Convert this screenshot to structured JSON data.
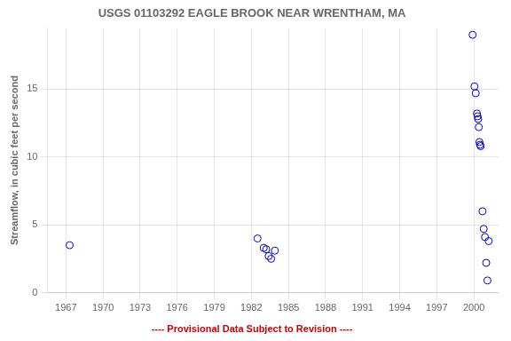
{
  "chart_data": {
    "type": "scatter",
    "title": "USGS 01103292 EAGLE BROOK NEAR WRENTHAM, MA",
    "ylabel": "Streamflow, in cubic feet per second",
    "x": [
      1967.3,
      1982.5,
      1983.0,
      1983.2,
      1983.4,
      1983.6,
      1983.9,
      1999.9,
      2000.05,
      2000.15,
      2000.25,
      2000.3,
      2000.35,
      2000.4,
      2000.45,
      2000.5,
      2000.55,
      2000.7,
      2000.8,
      2000.9,
      2001.0,
      2001.1,
      2001.2
    ],
    "values": [
      3.5,
      4.0,
      3.3,
      3.2,
      2.7,
      2.5,
      3.1,
      19.0,
      15.2,
      14.7,
      13.2,
      13.0,
      12.8,
      12.2,
      11.1,
      10.9,
      10.8,
      6.0,
      4.7,
      4.1,
      2.2,
      0.9,
      3.8
    ],
    "color": "#0000CC",
    "marker": "open_circle",
    "xlim": [
      1965.5,
      2002.0
    ],
    "ylim": [
      0,
      19.5
    ],
    "xticks": [
      1967,
      1970,
      1973,
      1976,
      1979,
      1982,
      1985,
      1988,
      1991,
      1994,
      1997,
      2000
    ],
    "yticks": [
      0,
      5,
      10,
      15
    ],
    "grid": true,
    "annotations": [
      {
        "text": "---- Provisional Data Subject to Revision ----",
        "color": "#cc0000"
      }
    ]
  }
}
